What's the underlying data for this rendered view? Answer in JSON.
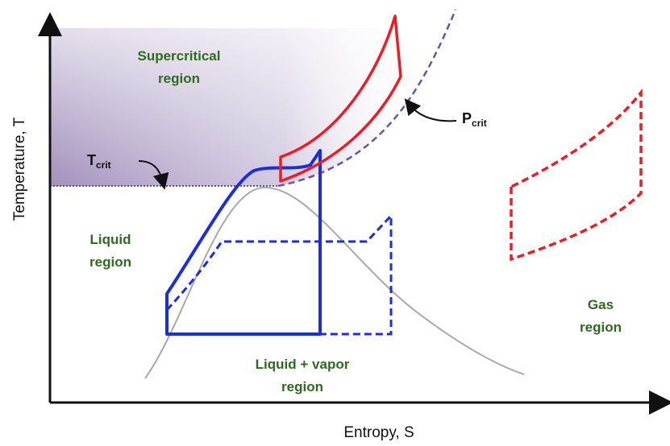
{
  "axes": {
    "y_label": "Temperature, T",
    "x_label": "Entropy, S"
  },
  "regions": {
    "supercritical": [
      "Supercritical",
      "region"
    ],
    "liquid": [
      "Liquid",
      "region"
    ],
    "gas": [
      "Gas",
      "region"
    ],
    "liquid_vapor": [
      "Liquid + vapor",
      "region"
    ]
  },
  "markers": {
    "t_crit": {
      "main": "T",
      "sub": "crit"
    },
    "p_crit": {
      "main": "P",
      "sub": "crit"
    }
  }
}
